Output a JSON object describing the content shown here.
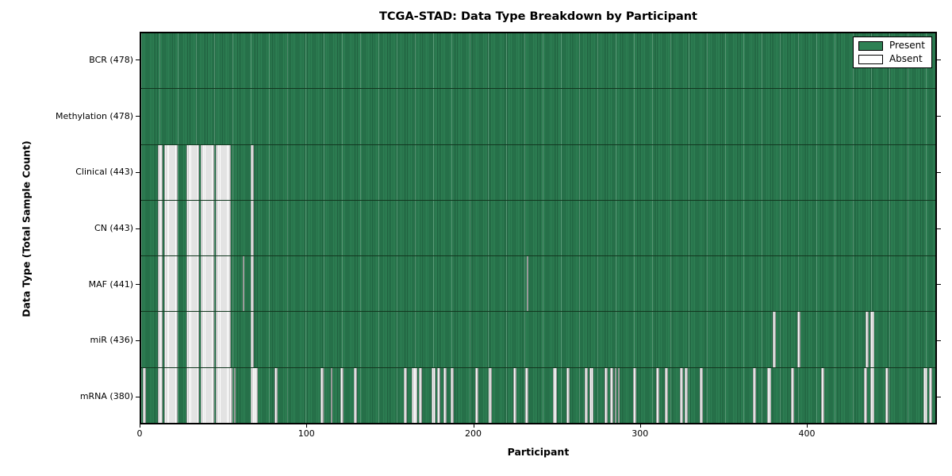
{
  "title": "TCGA-STAD: Data Type Breakdown by Participant",
  "axes": {
    "xlabel": "Participant",
    "ylabel": "Data Type (Total Sample Count)"
  },
  "legend": {
    "present_label": "Present",
    "absent_label": "Absent"
  },
  "colors": {
    "present_green": "#2e8154",
    "present_edge": "#1f5f3e",
    "absent_white": "#ffffff",
    "absent_edge": "#c7c7c7"
  },
  "chart_data": {
    "type": "heatmap",
    "title": "TCGA-STAD: Data Type Breakdown by Participant",
    "xlabel": "Participant",
    "ylabel": "Data Type (Total Sample Count)",
    "x_ticks": [
      0,
      100,
      200,
      300,
      400
    ],
    "x_max": 478,
    "n_participants": 478,
    "legend_entries": [
      "Present",
      "Absent"
    ],
    "legend_position": "upper right",
    "grid": false,
    "rows": [
      {
        "label": "BCR (478)",
        "data_type": "BCR",
        "present_count": 478,
        "absent_ranges": []
      },
      {
        "label": "Methylation (478)",
        "data_type": "Methylation",
        "present_count": 478,
        "absent_ranges": []
      },
      {
        "label": "Clinical (443)",
        "data_type": "Clinical",
        "present_count": 443,
        "absent_ranges": [
          [
            10,
            12
          ],
          [
            14,
            21
          ],
          [
            27,
            34
          ],
          [
            36,
            43
          ],
          [
            45,
            53
          ],
          [
            66,
            67
          ]
        ]
      },
      {
        "label": "CN (443)",
        "data_type": "CN",
        "present_count": 443,
        "absent_ranges": [
          [
            10,
            12
          ],
          [
            14,
            21
          ],
          [
            27,
            34
          ],
          [
            36,
            43
          ],
          [
            45,
            53
          ],
          [
            66,
            67
          ]
        ]
      },
      {
        "label": "MAF (441)",
        "data_type": "MAF",
        "present_count": 441,
        "absent_ranges": [
          [
            10,
            12
          ],
          [
            14,
            21
          ],
          [
            27,
            34
          ],
          [
            36,
            43
          ],
          [
            45,
            53
          ],
          [
            61,
            61
          ],
          [
            66,
            67
          ],
          [
            232,
            232
          ]
        ]
      },
      {
        "label": "miR (436)",
        "data_type": "miR",
        "present_count": 436,
        "absent_ranges": [
          [
            10,
            12
          ],
          [
            14,
            21
          ],
          [
            27,
            34
          ],
          [
            36,
            43
          ],
          [
            45,
            53
          ],
          [
            66,
            67
          ],
          [
            380,
            381
          ],
          [
            395,
            396
          ],
          [
            436,
            437
          ],
          [
            439,
            440
          ]
        ]
      },
      {
        "label": "mRNA (380)",
        "data_type": "mRNA",
        "present_count": 380,
        "absent_ranges": [
          [
            1,
            2
          ],
          [
            10,
            12
          ],
          [
            14,
            21
          ],
          [
            27,
            34
          ],
          [
            36,
            43
          ],
          [
            45,
            54
          ],
          [
            56,
            56
          ],
          [
            66,
            69
          ],
          [
            80,
            81
          ],
          [
            108,
            109
          ],
          [
            114,
            114
          ],
          [
            120,
            121
          ],
          [
            128,
            129
          ],
          [
            158,
            159
          ],
          [
            163,
            165
          ],
          [
            167,
            168
          ],
          [
            175,
            176
          ],
          [
            178,
            179
          ],
          [
            182,
            183
          ],
          [
            186,
            187
          ],
          [
            201,
            202
          ],
          [
            209,
            210
          ],
          [
            224,
            225
          ],
          [
            231,
            232
          ],
          [
            248,
            249
          ],
          [
            256,
            257
          ],
          [
            267,
            268
          ],
          [
            270,
            271
          ],
          [
            279,
            280
          ],
          [
            282,
            283
          ],
          [
            285,
            285
          ],
          [
            287,
            287
          ],
          [
            296,
            297
          ],
          [
            310,
            311
          ],
          [
            315,
            316
          ],
          [
            324,
            325
          ],
          [
            327,
            328
          ],
          [
            336,
            337
          ],
          [
            368,
            369
          ],
          [
            377,
            378
          ],
          [
            391,
            392
          ],
          [
            409,
            410
          ],
          [
            435,
            436
          ],
          [
            439,
            440
          ],
          [
            448,
            449
          ],
          [
            471,
            472
          ],
          [
            474,
            475
          ]
        ]
      }
    ]
  }
}
